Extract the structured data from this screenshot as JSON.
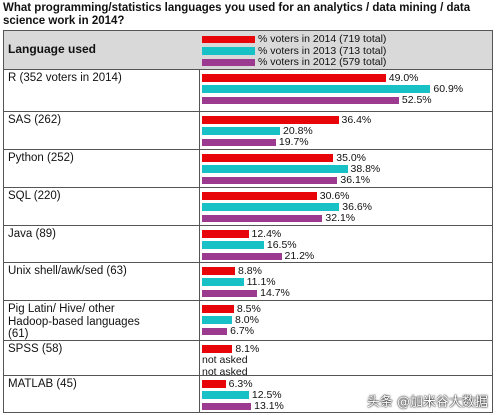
{
  "chart_data": {
    "type": "bar",
    "title": "What programming/statistics languages you used for an analytics / data mining / data science work in 2014?",
    "header_label": "Language used",
    "not_asked_label": "not asked",
    "series": [
      {
        "name": "% voters in 2014 (719 total)",
        "color": "#e8050a"
      },
      {
        "name": "% voters in 2013 (713 total)",
        "color": "#17c1c6"
      },
      {
        "name": "% voters in 2012 (579 total)",
        "color": "#9b3a8f"
      }
    ],
    "categories": [
      {
        "label": "R (352 voters in 2014)",
        "values": [
          49.0,
          60.9,
          52.5
        ],
        "texts": [
          "49.0%",
          "60.9%",
          "52.5%"
        ]
      },
      {
        "label": "SAS (262)",
        "values": [
          36.4,
          20.8,
          19.7
        ],
        "texts": [
          "36.4%",
          "20.8%",
          "19.7%"
        ]
      },
      {
        "label": "Python (252)",
        "values": [
          35.0,
          38.8,
          36.1
        ],
        "texts": [
          "35.0%",
          "38.8%",
          "36.1%"
        ]
      },
      {
        "label": "SQL (220)",
        "values": [
          30.6,
          36.6,
          32.1
        ],
        "texts": [
          "30.6%",
          "36.6%",
          "32.1%"
        ]
      },
      {
        "label": "Java (89)",
        "values": [
          12.4,
          16.5,
          21.2
        ],
        "texts": [
          "12.4%",
          "16.5%",
          "21.2%"
        ]
      },
      {
        "label": "Unix shell/awk/sed (63)",
        "values": [
          8.8,
          11.1,
          14.7
        ],
        "texts": [
          "8.8%",
          "11.1%",
          "14.7%"
        ]
      },
      {
        "label": "Pig Latin/ Hive/ other Hadoop-based languages (61)",
        "values": [
          8.5,
          8.0,
          6.7
        ],
        "texts": [
          "8.5%",
          "8.0%",
          "6.7%"
        ]
      },
      {
        "label": "SPSS (58)",
        "values": [
          8.1,
          null,
          null
        ],
        "texts": [
          "8.1%",
          null,
          null
        ]
      },
      {
        "label": "MATLAB (45)",
        "values": [
          6.3,
          12.5,
          13.1
        ],
        "texts": [
          "6.3%",
          "12.5%",
          "13.1%"
        ]
      }
    ],
    "xlim": [
      0,
      65
    ],
    "grid": false,
    "legend_position": "header row"
  },
  "watermark": "头条 @加米谷大数据"
}
